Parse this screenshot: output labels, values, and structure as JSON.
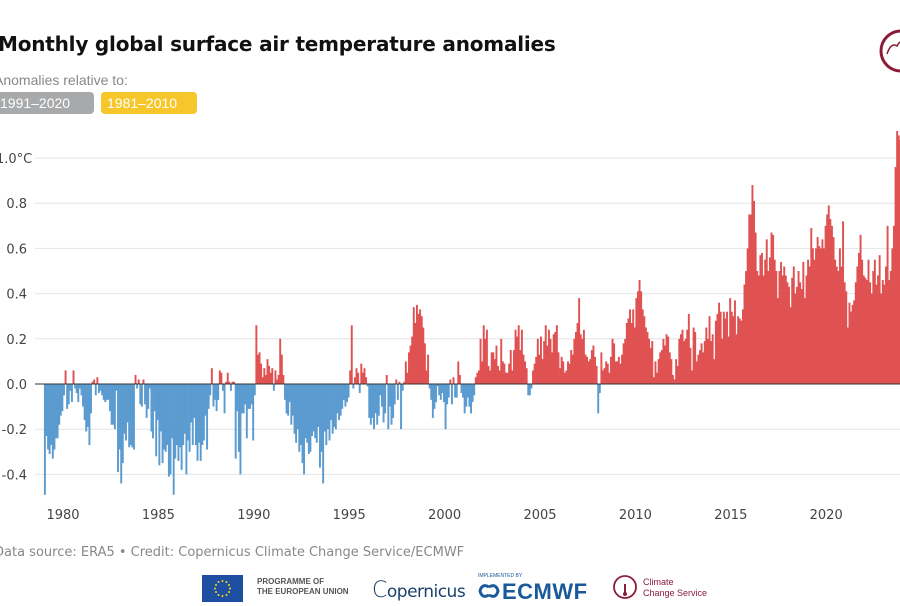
{
  "header": {
    "title": "Monthly global surface air temperature anomalies",
    "subtitle": "Anomalies relative to:",
    "baseline_options": [
      {
        "label": "1991–2020",
        "color": "#a8a9ab",
        "selected": false
      },
      {
        "label": "1981–2010",
        "color": "#f7c62a",
        "selected": true
      }
    ]
  },
  "logo_top": {
    "icon": "c3s-logo-icon"
  },
  "footer": {
    "credit": "Data source: ERA5 • Credit: Copernicus Climate Change Service/ECMWF",
    "eu_line1": "PROGRAMME OF",
    "eu_line2": "THE EUROPEAN UNION",
    "copernicus": "opernicus",
    "copernicus_c": "C",
    "implemented_by": "IMPLEMENTED BY",
    "ecmwf": "ECMWF",
    "c3s_line1": "Climate",
    "c3s_line2": "Change Service"
  },
  "colors": {
    "positive": "#e05252",
    "negative": "#5b9bd0",
    "zero_line": "#333333",
    "grid": "#e4e4e4"
  },
  "chart_data": {
    "type": "bar",
    "title": "Monthly global surface air temperature anomalies",
    "xlabel": "",
    "ylabel": "°C",
    "unit": "°C",
    "baseline": "1981–2010",
    "grid": true,
    "legend": "none",
    "ylim": [
      -0.5,
      1.12
    ],
    "yticks": [
      {
        "value": 1.0,
        "label": "1.0°C"
      },
      {
        "value": 0.8,
        "label": "0.8"
      },
      {
        "value": 0.6,
        "label": "0.6"
      },
      {
        "value": 0.4,
        "label": "0.4"
      },
      {
        "value": 0.2,
        "label": "0.2"
      },
      {
        "value": 0.0,
        "label": "0.0"
      },
      {
        "value": -0.2,
        "label": "-0.2"
      },
      {
        "value": -0.4,
        "label": "-0.4"
      }
    ],
    "xticks": [
      {
        "value": 1980,
        "label": "1980"
      },
      {
        "value": 1985,
        "label": "1985"
      },
      {
        "value": 1990,
        "label": "1990"
      },
      {
        "value": 1995,
        "label": "1995"
      },
      {
        "value": 2000,
        "label": "2000"
      },
      {
        "value": 2005,
        "label": "2005"
      },
      {
        "value": 2010,
        "label": "2010"
      },
      {
        "value": 2015,
        "label": "2015"
      },
      {
        "value": 2020,
        "label": "2020"
      }
    ],
    "xlim": [
      1978.0,
      2024.9
    ],
    "start_year": 1979,
    "start_month": 1,
    "monthly_values": {
      "1979": [
        -0.49,
        -0.23,
        -0.29,
        -0.31,
        -0.27,
        -0.33,
        -0.29,
        -0.24,
        -0.24,
        -0.18,
        -0.14,
        -0.12
      ],
      "1980": [
        -0.05,
        0.06,
        -0.11,
        -0.09,
        -0.03,
        -0.08,
        0.06,
        -0.02,
        -0.04,
        -0.08,
        -0.02,
        -0.05
      ],
      "1981": [
        -0.1,
        -0.16,
        -0.21,
        -0.19,
        -0.27,
        -0.13,
        0.01,
        0.02,
        -0.05,
        0.03,
        -0.04,
        -0.03
      ],
      "1982": [
        -0.05,
        -0.07,
        -0.08,
        -0.07,
        -0.07,
        -0.12,
        -0.18,
        -0.18,
        -0.2,
        -0.03,
        -0.39,
        -0.29
      ],
      "1983": [
        -0.44,
        -0.35,
        -0.22,
        -0.25,
        -0.17,
        -0.28,
        -0.27,
        -0.28,
        -0.29,
        0.04,
        -0.02,
        0.02
      ],
      "1984": [
        -0.09,
        -0.1,
        0.02,
        -0.09,
        -0.15,
        -0.11,
        -0.02,
        -0.21,
        -0.24,
        -0.12,
        -0.32,
        -0.16
      ],
      "1985": [
        -0.36,
        -0.21,
        -0.35,
        -0.29,
        -0.3,
        -0.27,
        -0.41,
        -0.4,
        -0.24,
        -0.49,
        -0.33,
        -0.27
      ],
      "1986": [
        -0.34,
        -0.28,
        -0.38,
        -0.27,
        -0.22,
        -0.4,
        -0.25,
        -0.3,
        -0.17,
        -0.27,
        -0.15,
        -0.27
      ],
      "1987": [
        -0.34,
        -0.26,
        -0.34,
        -0.27,
        -0.25,
        -0.14,
        -0.29,
        -0.11,
        -0.05,
        0.07,
        -0.1,
        -0.07
      ],
      "1988": [
        -0.12,
        -0.07,
        0.06,
        0.05,
        -0.03,
        -0.13,
        0.01,
        0.05,
        0.01,
        -0.03,
        0.01,
        0.01
      ],
      "1989": [
        -0.33,
        -0.12,
        -0.3,
        -0.4,
        -0.13,
        -0.13,
        -0.09,
        -0.24,
        -0.11,
        -0.11,
        -0.09,
        -0.25
      ],
      "1990": [
        -0.05,
        0.26,
        0.13,
        0.14,
        0.09,
        0.03,
        0.07,
        0.04,
        0.11,
        0.08,
        0.05,
        0.07
      ],
      "1991": [
        -0.03,
        0.06,
        0.02,
        0.04,
        0.2,
        0.13,
        0.04,
        -0.07,
        -0.13,
        -0.14,
        -0.08,
        -0.18
      ],
      "1992": [
        -0.14,
        -0.22,
        -0.26,
        -0.2,
        -0.3,
        -0.27,
        -0.35,
        -0.4,
        -0.24,
        -0.26,
        -0.31,
        -0.3
      ],
      "1993": [
        -0.23,
        -0.21,
        -0.24,
        -0.26,
        -0.19,
        -0.37,
        -0.3,
        -0.44,
        -0.21,
        -0.27,
        -0.2,
        -0.25
      ],
      "1994": [
        -0.16,
        -0.22,
        -0.19,
        -0.2,
        -0.13,
        -0.16,
        -0.14,
        -0.11,
        -0.07,
        -0.1,
        -0.08,
        -0.06
      ],
      "1995": [
        0.06,
        0.26,
        -0.02,
        0.03,
        0.07,
        0.05,
        -0.04,
        0.09,
        0.05,
        0.07,
        0.03,
        -0.01
      ],
      "1996": [
        -0.15,
        -0.18,
        -0.15,
        -0.2,
        -0.13,
        -0.18,
        -0.14,
        -0.05,
        -0.1,
        -0.17,
        -0.13,
        0.04
      ],
      "1997": [
        -0.2,
        -0.1,
        -0.18,
        -0.15,
        -0.09,
        0.02,
        -0.07,
        0.01,
        -0.2,
        -0.03,
        0.01,
        0.1
      ],
      "1998": [
        0.05,
        0.14,
        0.17,
        0.21,
        0.34,
        0.27,
        0.35,
        0.31,
        0.33,
        0.3,
        0.25,
        0.18
      ],
      "1999": [
        0.06,
        0.13,
        -0.02,
        -0.07,
        -0.15,
        -0.11,
        -0.08,
        -0.01,
        -0.05,
        -0.07,
        -0.04,
        -0.08
      ],
      "2000": [
        -0.2,
        -0.09,
        -0.06,
        0.02,
        -0.09,
        0.03,
        -0.06,
        -0.06,
        0.1,
        0.04,
        -0.04,
        -0.06
      ],
      "2001": [
        -0.13,
        -0.1,
        -0.06,
        -0.1,
        -0.13,
        -0.08,
        -0.05,
        0.03,
        0.05,
        0.06,
        0.2,
        0.1
      ],
      "2002": [
        0.26,
        0.2,
        0.24,
        0.08,
        0.06,
        0.14,
        0.14,
        0.11,
        0.17,
        0.08,
        0.06,
        0.2
      ],
      "2003": [
        0.1,
        0.09,
        0.05,
        0.05,
        0.09,
        0.15,
        0.06,
        0.15,
        0.24,
        0.21,
        0.26,
        0.15
      ],
      "2004": [
        0.24,
        0.13,
        0.1,
        0.07,
        -0.05,
        -0.05,
        -0.02,
        0.06,
        0.09,
        0.12,
        0.2,
        0.13
      ],
      "2005": [
        0.21,
        0.11,
        0.19,
        0.26,
        0.17,
        0.24,
        0.2,
        0.14,
        0.22,
        0.23,
        0.26,
        0.14
      ],
      "2006": [
        0.07,
        0.12,
        0.1,
        0.05,
        0.06,
        0.1,
        0.09,
        0.15,
        0.13,
        0.2,
        0.23,
        0.27
      ],
      "2007": [
        0.38,
        0.22,
        0.2,
        0.24,
        0.13,
        0.12,
        0.1,
        0.11,
        0.15,
        0.17,
        0.12,
        0.08
      ],
      "2008": [
        -0.13,
        -0.04,
        0.14,
        0.06,
        0.07,
        0.1,
        0.09,
        0.05,
        0.12,
        0.2,
        0.18,
        0.1
      ],
      "2009": [
        0.1,
        0.12,
        0.09,
        0.13,
        0.18,
        0.2,
        0.27,
        0.29,
        0.33,
        0.27,
        0.33,
        0.25
      ],
      "2010": [
        0.38,
        0.41,
        0.46,
        0.41,
        0.33,
        0.3,
        0.25,
        0.23,
        0.2,
        0.16,
        0.19,
        0.03
      ],
      "2011": [
        0.1,
        0.05,
        0.11,
        0.14,
        0.15,
        0.2,
        0.17,
        0.22,
        0.21,
        0.14,
        0.11,
        0.04
      ],
      "2012": [
        0.02,
        0.11,
        0.08,
        0.2,
        0.22,
        0.24,
        0.19,
        0.2,
        0.24,
        0.31,
        0.16,
        0.06
      ],
      "2013": [
        0.25,
        0.23,
        0.1,
        0.13,
        0.15,
        0.18,
        0.14,
        0.19,
        0.25,
        0.2,
        0.3,
        0.19
      ],
      "2014": [
        0.22,
        0.11,
        0.28,
        0.31,
        0.36,
        0.32,
        0.2,
        0.32,
        0.29,
        0.32,
        0.21,
        0.38
      ],
      "2015": [
        0.32,
        0.3,
        0.37,
        0.22,
        0.3,
        0.29,
        0.28,
        0.33,
        0.44,
        0.5,
        0.6,
        0.75
      ],
      "2016": [
        0.75,
        0.88,
        0.81,
        0.67,
        0.5,
        0.48,
        0.57,
        0.58,
        0.48,
        0.55,
        0.64,
        0.5
      ],
      "2017": [
        0.56,
        0.67,
        0.66,
        0.55,
        0.5,
        0.38,
        0.5,
        0.54,
        0.48,
        0.52,
        0.48,
        0.45
      ],
      "2018": [
        0.43,
        0.34,
        0.47,
        0.52,
        0.4,
        0.43,
        0.5,
        0.45,
        0.42,
        0.54,
        0.38,
        0.48
      ],
      "2019": [
        0.55,
        0.52,
        0.69,
        0.6,
        0.55,
        0.6,
        0.65,
        0.61,
        0.6,
        0.64,
        0.6,
        0.7
      ],
      "2020": [
        0.75,
        0.79,
        0.73,
        0.7,
        0.65,
        0.55,
        0.52,
        0.5,
        0.6,
        0.52,
        0.72,
        0.45
      ],
      "2021": [
        0.41,
        0.25,
        0.36,
        0.32,
        0.35,
        0.37,
        0.45,
        0.52,
        0.58,
        0.66,
        0.55,
        0.48
      ],
      "2022": [
        0.47,
        0.46,
        0.55,
        0.45,
        0.4,
        0.5,
        0.55,
        0.44,
        0.48,
        0.57,
        0.4,
        0.46
      ],
      "2023": [
        0.44,
        0.52,
        0.7,
        0.46,
        0.5,
        0.6,
        0.7,
        0.96,
        1.12,
        1.1,
        1.08,
        1.1
      ]
    }
  }
}
